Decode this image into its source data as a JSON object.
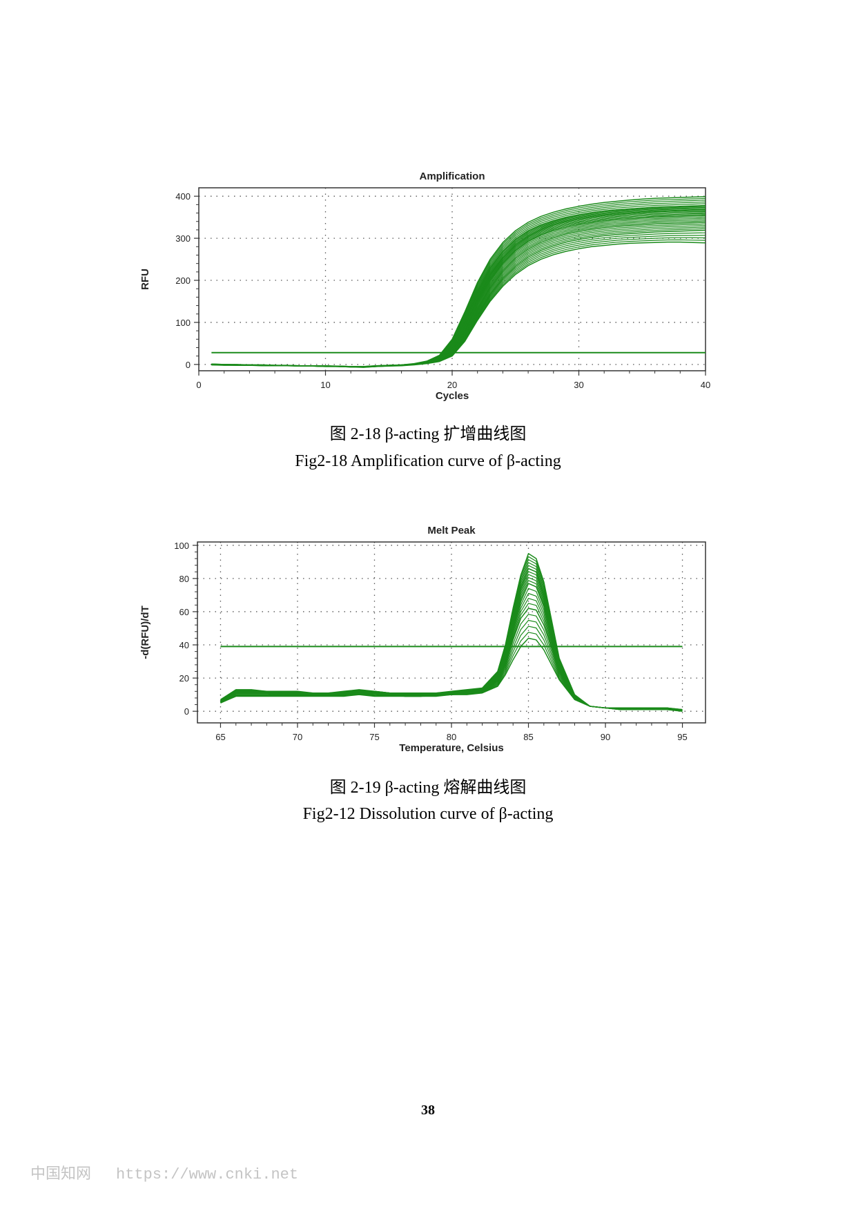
{
  "figures": [
    {
      "caption_cn": "图 2-18 β-acting 扩增曲线图",
      "caption_en": "Fig2-18 Amplification curve of β-acting"
    },
    {
      "caption_cn": "图 2-19 β-acting 熔解曲线图",
      "caption_en": "Fig2-12  Dissolution curve of β-acting"
    }
  ],
  "page_number": "38",
  "watermark": {
    "brand": "中国知网",
    "url": "https://www.cnki.net"
  },
  "chart_data": [
    {
      "type": "line",
      "title": "Amplification",
      "xlabel": "Cycles",
      "ylabel": "RFU",
      "xlim": [
        0,
        40
      ],
      "ylim": [
        -15,
        420
      ],
      "xticks": [
        0,
        10,
        20,
        30,
        40
      ],
      "yticks": [
        0,
        100,
        200,
        300,
        400
      ],
      "grid": true,
      "line_color": "#1a8a1a",
      "threshold": 28,
      "series_x": [
        1,
        2,
        3,
        4,
        5,
        6,
        7,
        8,
        9,
        10,
        11,
        12,
        13,
        14,
        15,
        16,
        17,
        18,
        19,
        20,
        21,
        22,
        23,
        24,
        25,
        26,
        27,
        28,
        29,
        30,
        31,
        32,
        33,
        34,
        35,
        36,
        37,
        38,
        39,
        40
      ],
      "series": [
        {
          "values": [
            0,
            -1,
            -2,
            -1,
            -1,
            -2,
            -2,
            -3,
            -3,
            -4,
            -4,
            -5,
            -5,
            -3,
            -2,
            -1,
            2,
            8,
            22,
            60,
            125,
            195,
            250,
            290,
            318,
            338,
            352,
            362,
            370,
            376,
            381,
            385,
            388,
            391,
            393,
            395,
            396,
            397,
            398,
            399
          ]
        },
        {
          "values": [
            1,
            0,
            -1,
            -1,
            -2,
            -2,
            -3,
            -3,
            -3,
            -4,
            -5,
            -5,
            -6,
            -4,
            -3,
            -2,
            1,
            6,
            18,
            50,
            108,
            175,
            230,
            270,
            298,
            318,
            332,
            342,
            350,
            356,
            361,
            365,
            368,
            370,
            372,
            374,
            375,
            376,
            377,
            378
          ]
        },
        {
          "values": [
            -1,
            -1,
            -2,
            -2,
            -2,
            -3,
            -3,
            -3,
            -4,
            -4,
            -5,
            -6,
            -6,
            -4,
            -3,
            -2,
            0,
            5,
            15,
            42,
            95,
            160,
            214,
            254,
            284,
            305,
            320,
            331,
            339,
            345,
            350,
            354,
            357,
            359,
            361,
            363,
            364,
            365,
            366,
            366
          ]
        },
        {
          "values": [
            0,
            0,
            -1,
            -2,
            -2,
            -2,
            -3,
            -3,
            -4,
            -4,
            -4,
            -5,
            -5,
            -4,
            -2,
            -1,
            1,
            4,
            13,
            36,
            85,
            148,
            200,
            240,
            270,
            292,
            307,
            318,
            326,
            332,
            337,
            341,
            344,
            346,
            348,
            350,
            351,
            352,
            353,
            354
          ]
        },
        {
          "values": [
            1,
            0,
            0,
            -1,
            -1,
            -2,
            -2,
            -3,
            -3,
            -3,
            -4,
            -5,
            -5,
            -3,
            -2,
            -1,
            1,
            4,
            11,
            30,
            74,
            132,
            183,
            222,
            252,
            274,
            290,
            301,
            310,
            316,
            321,
            325,
            328,
            330,
            332,
            334,
            335,
            336,
            337,
            338
          ]
        },
        {
          "values": [
            0,
            -1,
            -1,
            -2,
            -2,
            -3,
            -3,
            -4,
            -4,
            -5,
            -5,
            -6,
            -6,
            -5,
            -3,
            -2,
            0,
            3,
            9,
            25,
            64,
            118,
            166,
            204,
            233,
            255,
            271,
            282,
            291,
            297,
            302,
            306,
            309,
            311,
            313,
            315,
            316,
            317,
            318,
            319
          ]
        },
        {
          "values": [
            -1,
            -2,
            -2,
            -2,
            -3,
            -3,
            -3,
            -4,
            -4,
            -5,
            -5,
            -6,
            -7,
            -5,
            -4,
            -3,
            -1,
            2,
            7,
            20,
            55,
            105,
            150,
            186,
            214,
            235,
            250,
            261,
            269,
            275,
            280,
            283,
            286,
            288,
            289,
            290,
            291,
            291,
            290,
            289
          ]
        }
      ]
    },
    {
      "type": "line",
      "title": "Melt Peak",
      "xlabel": "Temperature, Celsius",
      "ylabel": "-d(RFU)/dT",
      "xlim": [
        63.5,
        96.5
      ],
      "ylim": [
        -7,
        102
      ],
      "xticks": [
        65,
        70,
        75,
        80,
        85,
        90,
        95
      ],
      "yticks": [
        0,
        20,
        40,
        60,
        80,
        100
      ],
      "grid": true,
      "line_color": "#1a8a1a",
      "threshold": 39,
      "series_x": [
        65,
        65.5,
        66,
        67,
        68,
        69,
        70,
        71,
        72,
        73,
        74,
        75,
        76,
        77,
        78,
        79,
        80,
        81,
        82,
        83,
        83.5,
        84,
        84.5,
        85,
        85.5,
        86,
        86.5,
        87,
        88,
        89,
        90,
        91,
        92,
        93,
        94,
        95
      ],
      "series": [
        {
          "values": [
            7,
            10,
            13,
            13,
            12,
            12,
            12,
            11,
            11,
            12,
            13,
            12,
            11,
            11,
            11,
            11,
            12,
            13,
            14,
            24,
            40,
            62,
            82,
            95,
            92,
            78,
            55,
            32,
            10,
            3,
            2,
            2,
            2,
            2,
            2,
            1
          ]
        },
        {
          "values": [
            6,
            9,
            12,
            12,
            12,
            11,
            11,
            11,
            11,
            11,
            12,
            12,
            11,
            10,
            10,
            11,
            11,
            12,
            13,
            22,
            36,
            56,
            74,
            86,
            84,
            70,
            50,
            30,
            9,
            3,
            2,
            2,
            2,
            2,
            2,
            0
          ]
        },
        {
          "values": [
            5,
            8,
            11,
            11,
            11,
            11,
            10,
            10,
            10,
            11,
            12,
            11,
            10,
            10,
            10,
            10,
            11,
            11,
            13,
            20,
            32,
            50,
            66,
            77,
            75,
            63,
            45,
            27,
            9,
            3,
            2,
            2,
            2,
            1,
            2,
            1
          ]
        },
        {
          "values": [
            6,
            9,
            11,
            11,
            11,
            10,
            10,
            10,
            10,
            10,
            11,
            11,
            10,
            9,
            9,
            10,
            10,
            11,
            12,
            18,
            28,
            43,
            56,
            62,
            61,
            52,
            38,
            24,
            8,
            3,
            2,
            1,
            1,
            1,
            1,
            1
          ]
        },
        {
          "values": [
            5,
            7,
            9,
            9,
            9,
            9,
            9,
            9,
            9,
            9,
            10,
            9,
            9,
            9,
            9,
            9,
            10,
            10,
            11,
            15,
            22,
            31,
            39,
            44,
            43,
            37,
            28,
            19,
            7,
            3,
            2,
            1,
            1,
            1,
            1,
            0
          ]
        }
      ]
    }
  ]
}
